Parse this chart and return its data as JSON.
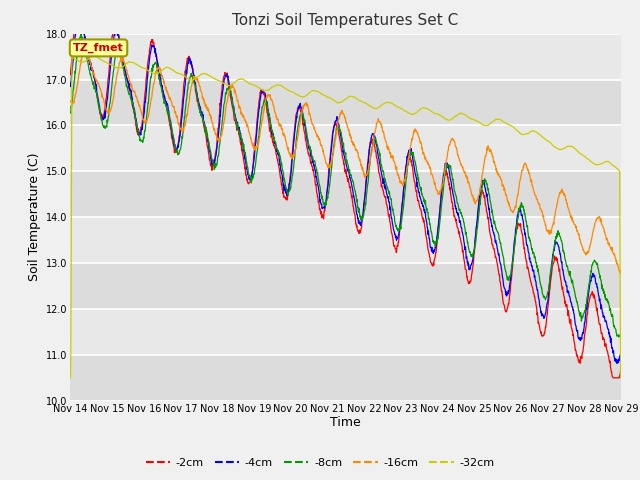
{
  "title": "Tonzi Soil Temperatures Set C",
  "xlabel": "Time",
  "ylabel": "Soil Temperature (C)",
  "ylim": [
    10.0,
    18.0
  ],
  "yticks": [
    10.0,
    11.0,
    12.0,
    13.0,
    14.0,
    15.0,
    16.0,
    17.0,
    18.0
  ],
  "xtick_labels": [
    "Nov 14",
    "Nov 15",
    "Nov 16",
    "Nov 17",
    "Nov 18",
    "Nov 19",
    "Nov 20",
    "Nov 21",
    "Nov 22",
    "Nov 23",
    "Nov 24",
    "Nov 25",
    "Nov 26",
    "Nov 27",
    "Nov 28",
    "Nov 29"
  ],
  "legend_label": "TZ_fmet",
  "series_labels": [
    "-2cm",
    "-4cm",
    "-8cm",
    "-16cm",
    "-32cm"
  ],
  "series_colors": [
    "#ff0000",
    "#0000ff",
    "#009900",
    "#ff8800",
    "#cccc00"
  ],
  "fig_bg_color": "#f0f0f0",
  "plot_bg_color": "#e8e8e8",
  "band_colors": [
    "#dcdcdc",
    "#e8e8e8"
  ],
  "n_days": 15,
  "points_per_day": 96
}
